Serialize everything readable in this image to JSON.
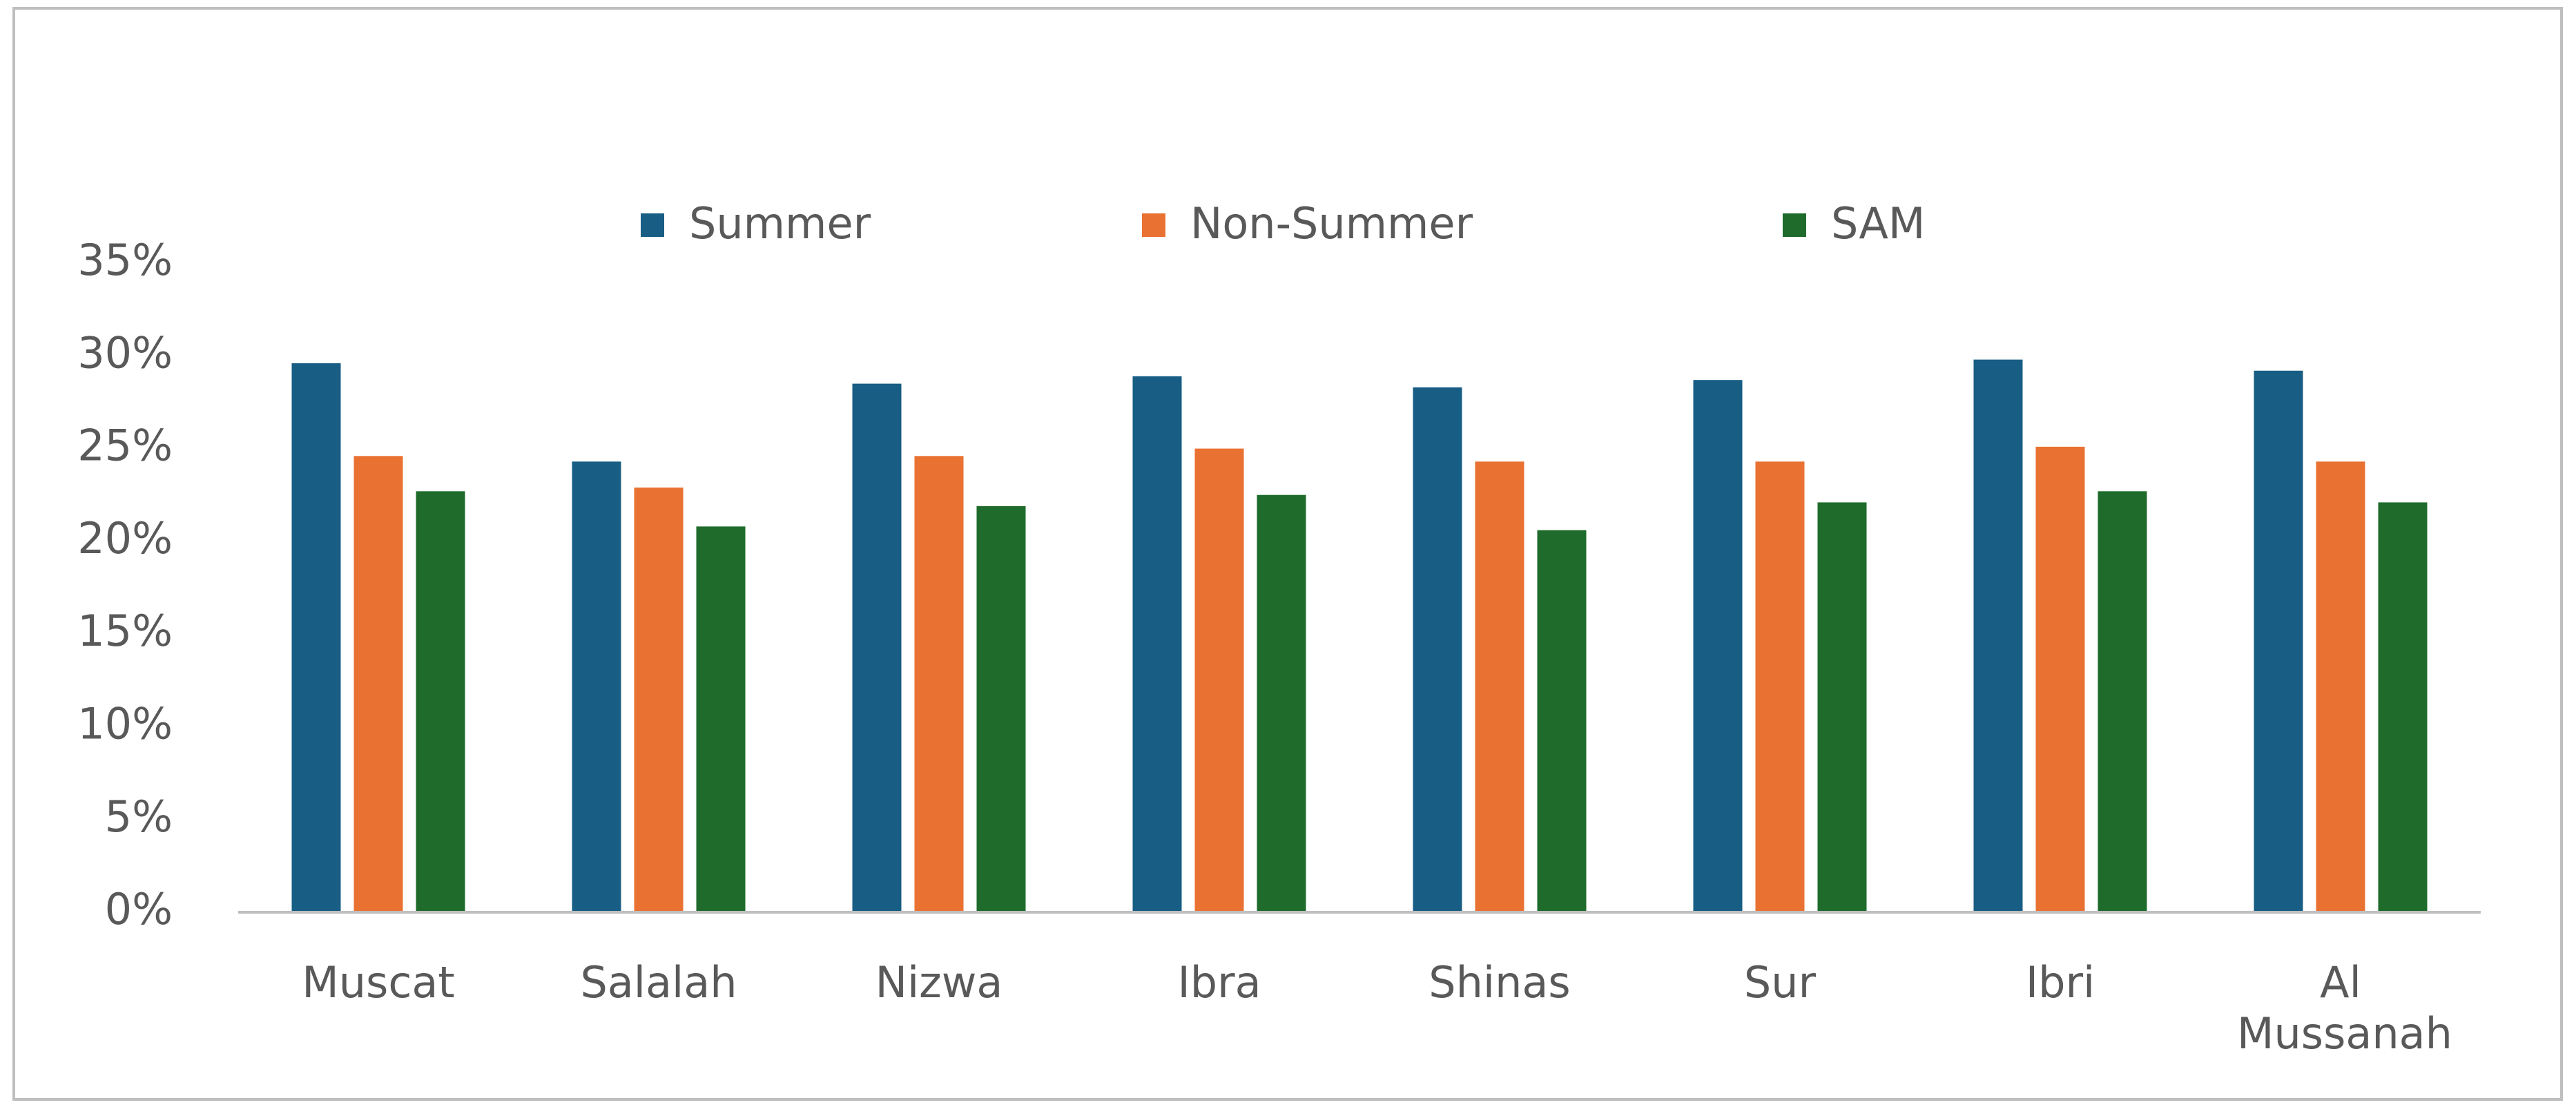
{
  "chart_data": {
    "type": "bar",
    "categories": [
      "Muscat",
      "Salalah",
      "Nizwa",
      "Ibra",
      "Shinas",
      "Sur",
      "Ibri",
      "Al Mussanah"
    ],
    "series": [
      {
        "name": "Summer",
        "color": "#175d84",
        "values": [
          29.6,
          24.3,
          28.5,
          28.9,
          28.3,
          28.7,
          29.8,
          29.2
        ]
      },
      {
        "name": "Non-Summer",
        "color": "#e97132",
        "values": [
          24.6,
          22.9,
          24.6,
          25.0,
          24.3,
          24.3,
          25.1,
          24.3
        ]
      },
      {
        "name": "SAM",
        "color": "#1e6b2b",
        "values": [
          22.7,
          20.8,
          21.9,
          22.5,
          20.6,
          22.1,
          22.7,
          22.1
        ]
      }
    ],
    "ylim": [
      0,
      35
    ],
    "yticks": [
      {
        "value": 0,
        "label": "0%"
      },
      {
        "value": 5,
        "label": "5%"
      },
      {
        "value": 10,
        "label": "10%"
      },
      {
        "value": 15,
        "label": "15%"
      },
      {
        "value": 20,
        "label": "20%"
      },
      {
        "value": 25,
        "label": "25%"
      },
      {
        "value": 30,
        "label": "30%"
      },
      {
        "value": 35,
        "label": "35%"
      }
    ],
    "grid": false,
    "legend": "top"
  }
}
